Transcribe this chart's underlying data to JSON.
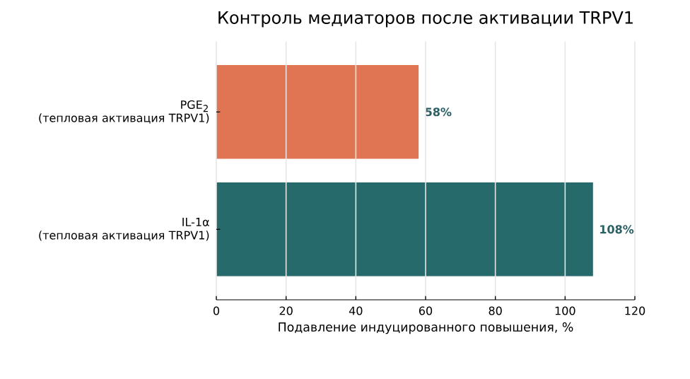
{
  "chart_data": {
    "type": "bar",
    "orientation": "horizontal",
    "title": "Контроль медиаторов после активации TRPV1",
    "xlabel": "Подавление индуцированного повышения, %",
    "categories": [
      "PGE$_{2}$\n(тепловая активация TRPV1)",
      "IL-1α\n(тепловая активация TRPV1)"
    ],
    "values": [
      58,
      108
    ],
    "colors": [
      "#e07553",
      "#266a6c"
    ],
    "value_labels": [
      "58%",
      "108%"
    ],
    "xlim": [
      0,
      120
    ],
    "xticks": [
      0,
      20,
      40,
      60,
      80,
      100,
      120
    ],
    "grid": "x"
  }
}
